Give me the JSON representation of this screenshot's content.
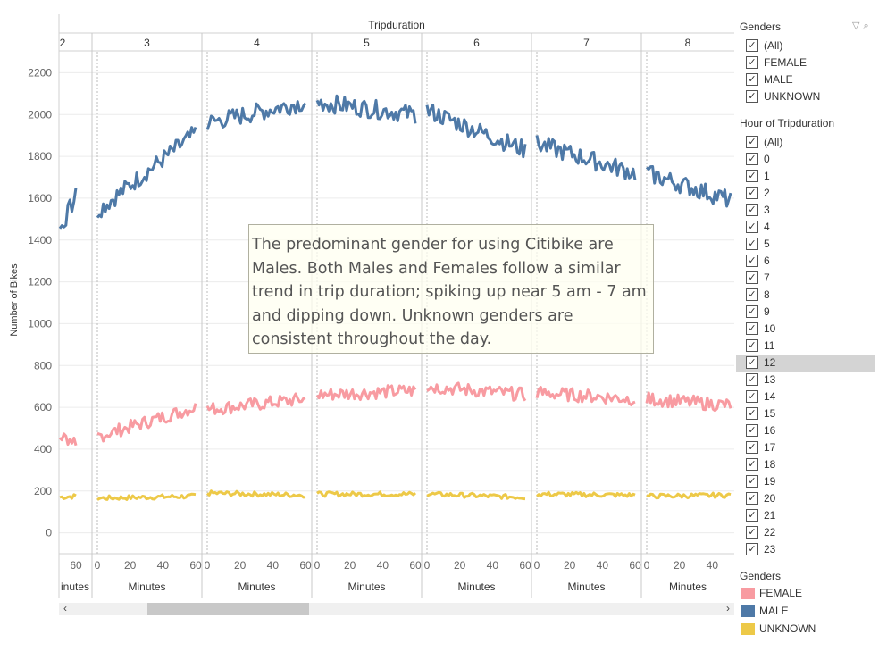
{
  "chart_data": {
    "type": "line",
    "title": "Tripduration",
    "ylabel": "Number of Bikes",
    "xlabel_each_pane": "Minutes",
    "ylim": [
      -100,
      2300
    ],
    "y_ticks": [
      0,
      200,
      400,
      600,
      800,
      1000,
      1200,
      1400,
      1600,
      1800,
      2000,
      2200
    ],
    "grid": true,
    "legend_position": "right",
    "panes": [
      {
        "header": "2",
        "x_ticks": [
          "60"
        ],
        "x_label": "inutes",
        "series": {
          "MALE": [
            1450,
            1610
          ],
          "FEMALE": [
            460,
            440
          ],
          "UNKNOWN": [
            170,
            175
          ]
        }
      },
      {
        "header": "3",
        "x_ticks": [
          "0",
          "20",
          "40",
          "60"
        ],
        "x_label": "Minutes",
        "series": {
          "MALE": [
            1540,
            1910
          ],
          "FEMALE": [
            460,
            600
          ],
          "UNKNOWN": [
            165,
            175
          ]
        }
      },
      {
        "header": "4",
        "x_ticks": [
          "0",
          "20",
          "40",
          "60"
        ],
        "x_label": "Minutes",
        "series": {
          "MALE": [
            1960,
            2060
          ],
          "FEMALE": [
            590,
            640
          ],
          "UNKNOWN": [
            190,
            180
          ]
        }
      },
      {
        "header": "5",
        "x_ticks": [
          "0",
          "20",
          "40",
          "60"
        ],
        "x_label": "Minutes",
        "series": {
          "MALE": [
            2060,
            2000
          ],
          "FEMALE": [
            660,
            680
          ],
          "UNKNOWN": [
            185,
            185
          ]
        }
      },
      {
        "header": "6",
        "x_ticks": [
          "0",
          "20",
          "40",
          "60"
        ],
        "x_label": "Minutes",
        "series": {
          "MALE": [
            2020,
            1830
          ],
          "FEMALE": [
            700,
            660
          ],
          "UNKNOWN": [
            185,
            170
          ]
        }
      },
      {
        "header": "7",
        "x_ticks": [
          "0",
          "20",
          "40",
          "60"
        ],
        "x_label": "Minutes",
        "series": {
          "MALE": [
            1860,
            1720
          ],
          "FEMALE": [
            670,
            640
          ],
          "UNKNOWN": [
            185,
            180
          ]
        }
      },
      {
        "header": "8",
        "x_ticks": [
          "0",
          "20",
          "40"
        ],
        "x_label": "Minutes",
        "series": {
          "MALE": [
            1720,
            1590
          ],
          "FEMALE": [
            640,
            610
          ],
          "UNKNOWN": [
            175,
            180
          ]
        }
      }
    ],
    "series_colors": {
      "FEMALE": "#f89ba1",
      "MALE": "#4e79a7",
      "UNKNOWN": "#edc948"
    }
  },
  "annotation": "The predominant gender for using Citibike are Males. Both Males and Females follow a similar trend in trip duration; spiking up near 5 am - 7 am and dipping down. Unknown genders are consistent throughout the day.",
  "filters": {
    "genders": {
      "title": "Genders",
      "items": [
        "(All)",
        "FEMALE",
        "MALE",
        "UNKNOWN"
      ]
    },
    "hour": {
      "title": "Hour of Tripduration",
      "items": [
        "(All)",
        "0",
        "1",
        "2",
        "3",
        "4",
        "5",
        "6",
        "7",
        "8",
        "9",
        "10",
        "11",
        "12",
        "13",
        "14",
        "15",
        "16",
        "17",
        "18",
        "19",
        "20",
        "21",
        "22",
        "23"
      ],
      "highlighted": "12"
    }
  },
  "legend": {
    "title": "Genders",
    "items": [
      {
        "label": "FEMALE",
        "color": "#f89ba1"
      },
      {
        "label": "MALE",
        "color": "#4e79a7"
      },
      {
        "label": "UNKNOWN",
        "color": "#edc948"
      }
    ]
  }
}
